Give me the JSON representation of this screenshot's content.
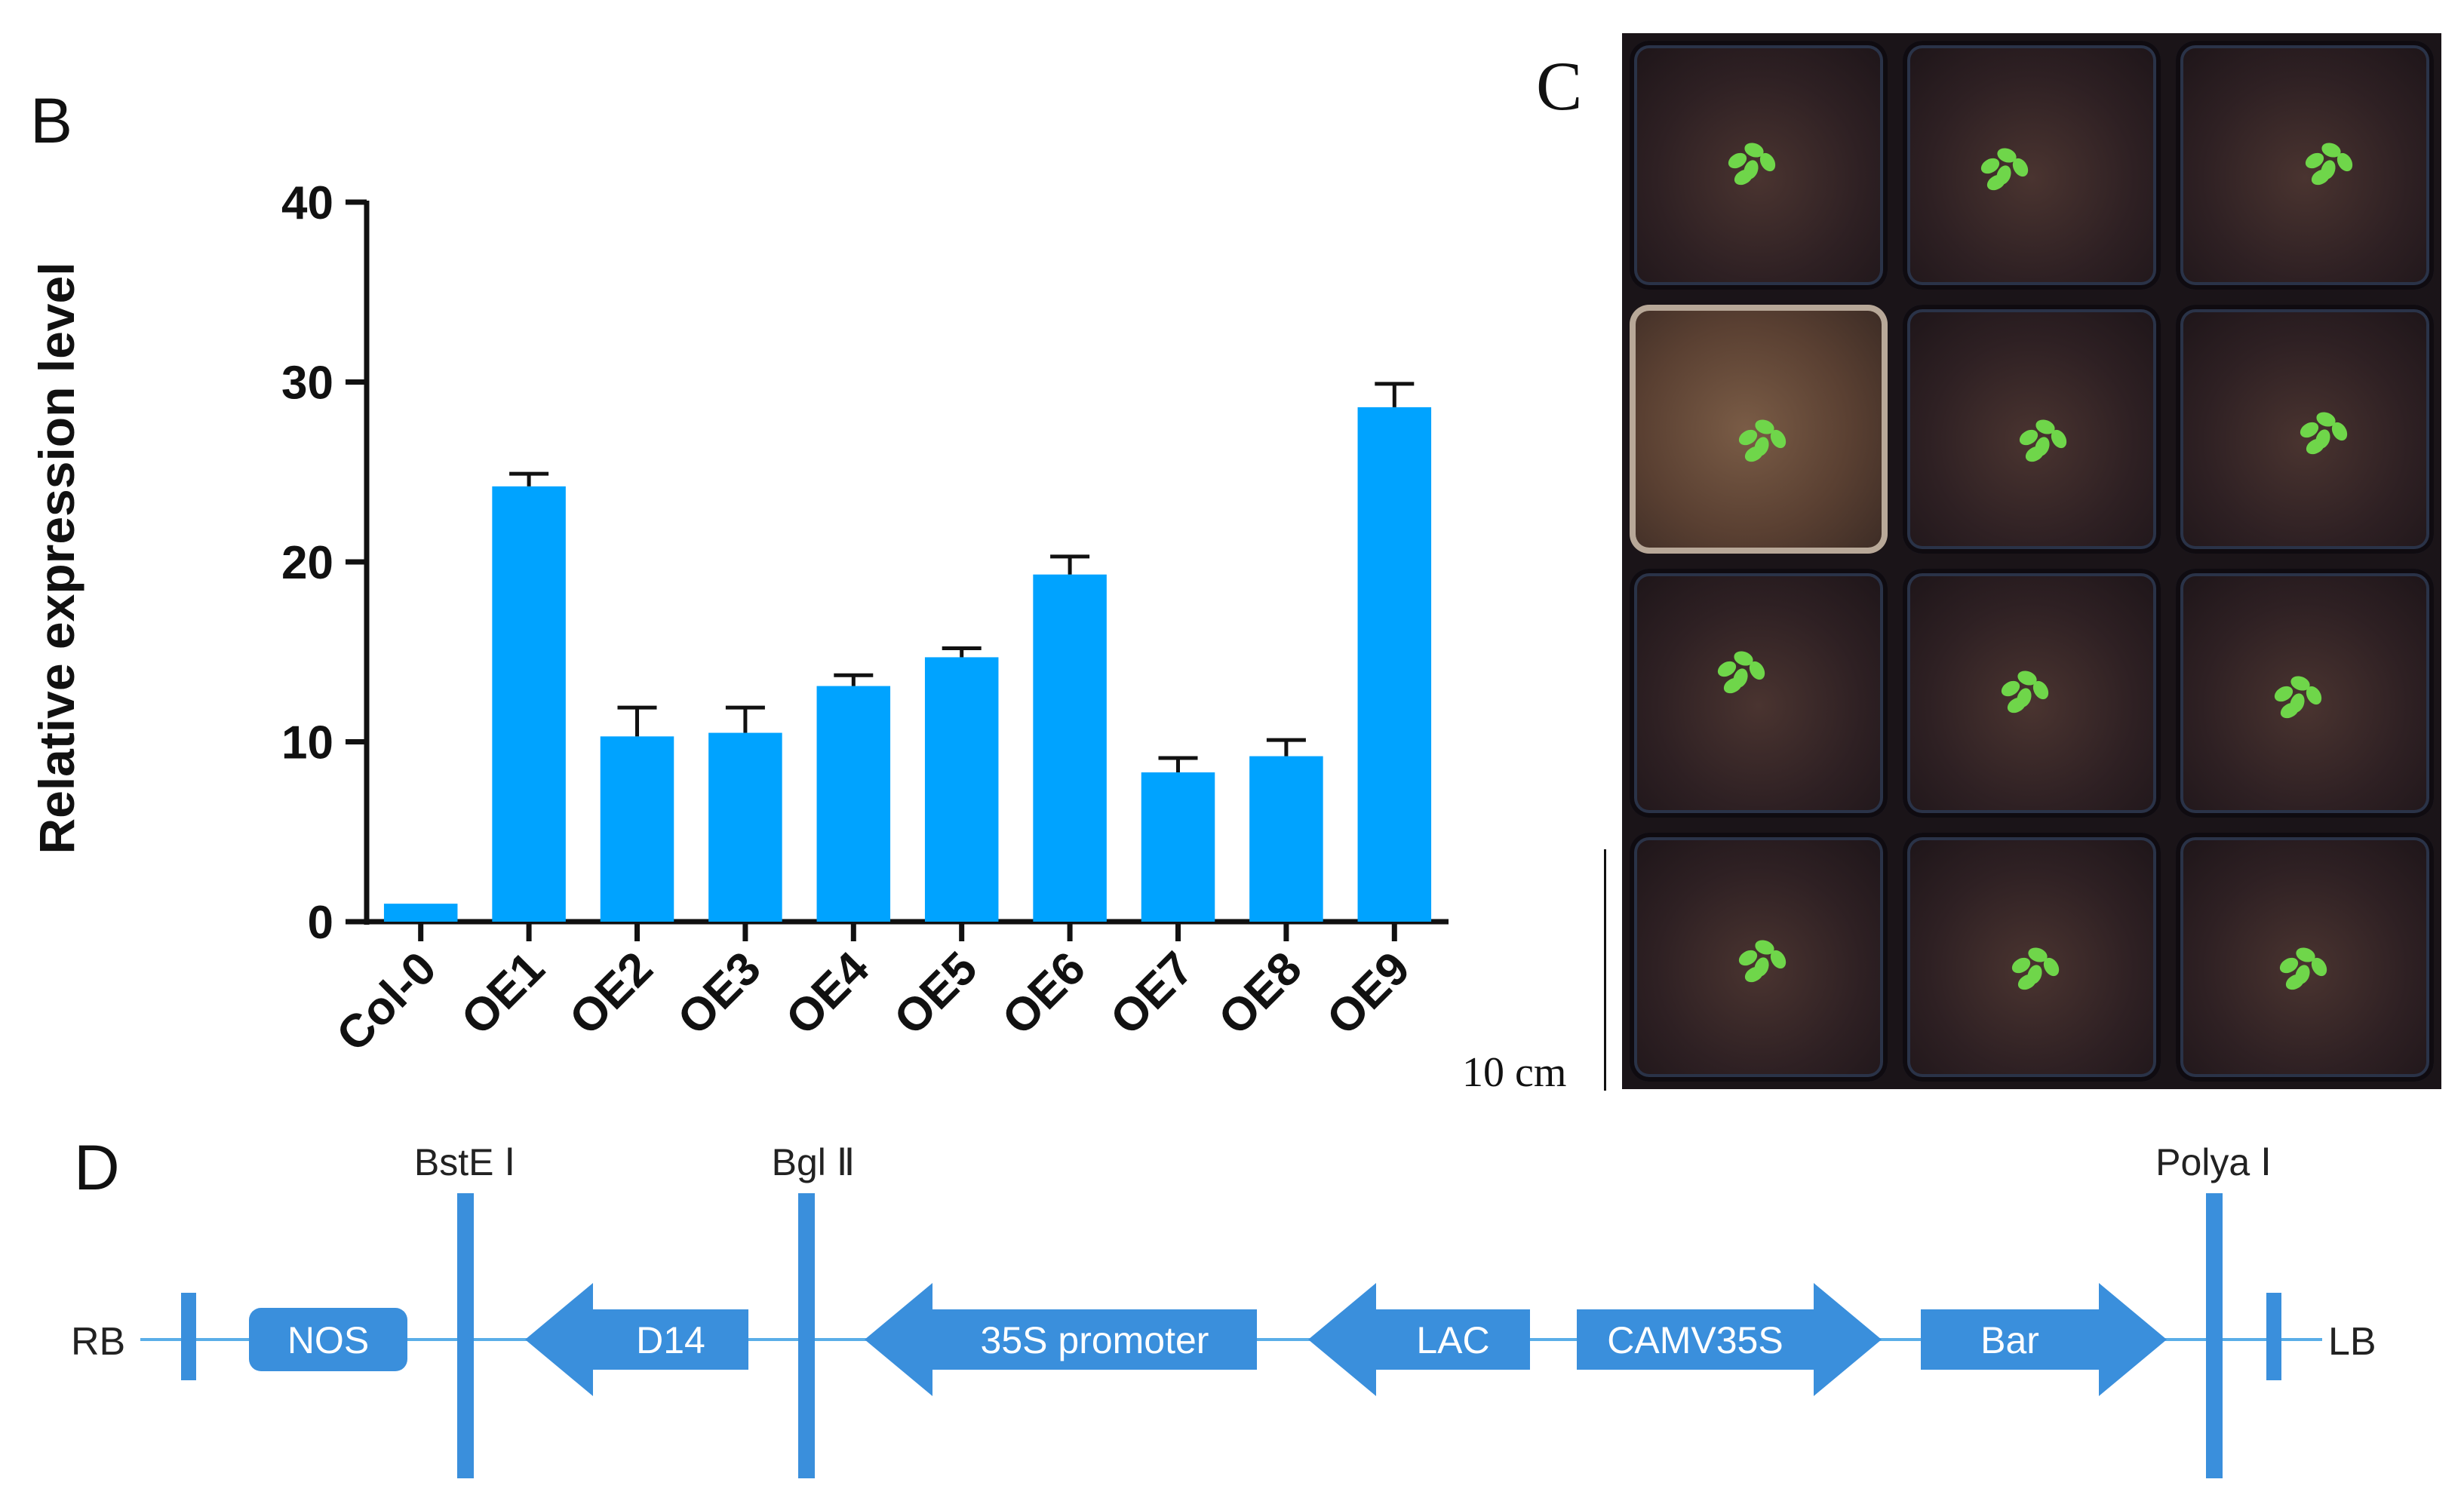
{
  "panels": {
    "b": "B",
    "c": "C",
    "d": "D"
  },
  "colors": {
    "bar": "#00a3ff",
    "axis": "#111111",
    "diagram": "#3a8fdc",
    "line": "#5aaee8"
  },
  "chart_data": {
    "type": "bar",
    "title": "",
    "xlabel": "",
    "ylabel": "Relative expression level",
    "categories": [
      "Col-0",
      "OE1",
      "OE2",
      "OE3",
      "OE4",
      "OE5",
      "OE6",
      "OE7",
      "OE8",
      "OE9"
    ],
    "values": [
      1.0,
      24.2,
      10.3,
      10.5,
      13.1,
      14.7,
      19.3,
      8.3,
      9.2,
      28.6
    ],
    "errors": [
      0,
      0.7,
      1.6,
      1.4,
      0.6,
      0.5,
      1.0,
      0.8,
      0.9,
      1.3
    ],
    "ylim": [
      0,
      40
    ],
    "yticks": [
      0,
      10,
      20,
      30,
      40
    ],
    "grid": false
  },
  "photo": {
    "scale_label": "10 cm",
    "rows": 4,
    "cols": 3
  },
  "diagram": {
    "left_border": "RB",
    "right_border": "LB",
    "sites": [
      {
        "name": "site-bste",
        "label": "BstE Ⅰ"
      },
      {
        "name": "site-bgl",
        "label": "Bgl Ⅱ"
      },
      {
        "name": "site-polya",
        "label": "Polya Ⅰ"
      }
    ],
    "elements": [
      {
        "name": "element-nos",
        "label": "NOS",
        "shape": "box"
      },
      {
        "name": "element-d14",
        "label": "D14",
        "shape": "arrow-left"
      },
      {
        "name": "element-35s-promoter",
        "label": "35S promoter",
        "shape": "arrow-left"
      },
      {
        "name": "element-lac",
        "label": "LAC",
        "shape": "arrow-left"
      },
      {
        "name": "element-camv35s",
        "label": "CAMV35S",
        "shape": "arrow-right"
      },
      {
        "name": "element-bar",
        "label": "Bar",
        "shape": "arrow-right"
      }
    ]
  }
}
